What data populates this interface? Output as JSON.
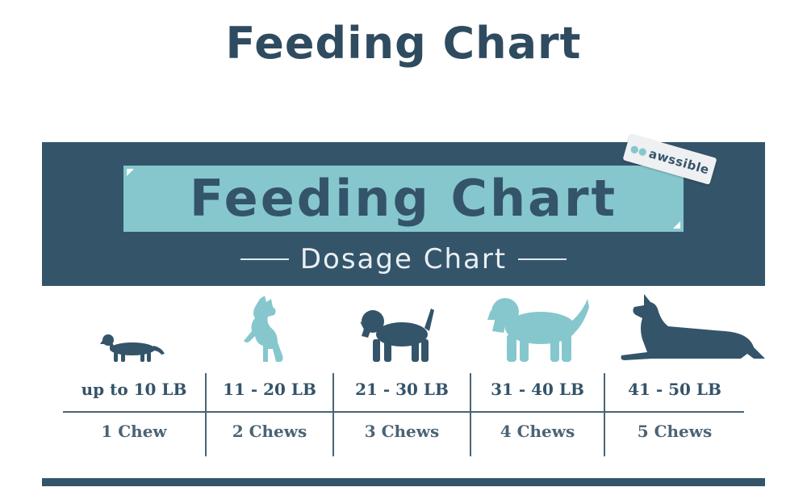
{
  "page_title": "Feeding Chart",
  "chart": {
    "title": "Feeding Chart",
    "subtitle": "Dosage Chart",
    "logo_text": "awssible",
    "logo_icon": "paw-icon",
    "colors": {
      "navy": "#34546a",
      "teal": "#86c7ce"
    },
    "columns": [
      {
        "weight": "up to 10 LB",
        "dose": "1 Chew",
        "dog_icon": "dachshund-icon",
        "dog_color": "navy"
      },
      {
        "weight": "11 - 20 LB",
        "dose": "2 Chews",
        "dog_icon": "terrier-icon",
        "dog_color": "teal"
      },
      {
        "weight": "21 - 30 LB",
        "dose": "3 Chews",
        "dog_icon": "beagle-icon",
        "dog_color": "navy"
      },
      {
        "weight": "31 - 40 LB",
        "dose": "4 Chews",
        "dog_icon": "retriever-icon",
        "dog_color": "teal"
      },
      {
        "weight": "41 - 50 LB",
        "dose": "5 Chews",
        "dog_icon": "great-dane-icon",
        "dog_color": "navy"
      }
    ]
  }
}
